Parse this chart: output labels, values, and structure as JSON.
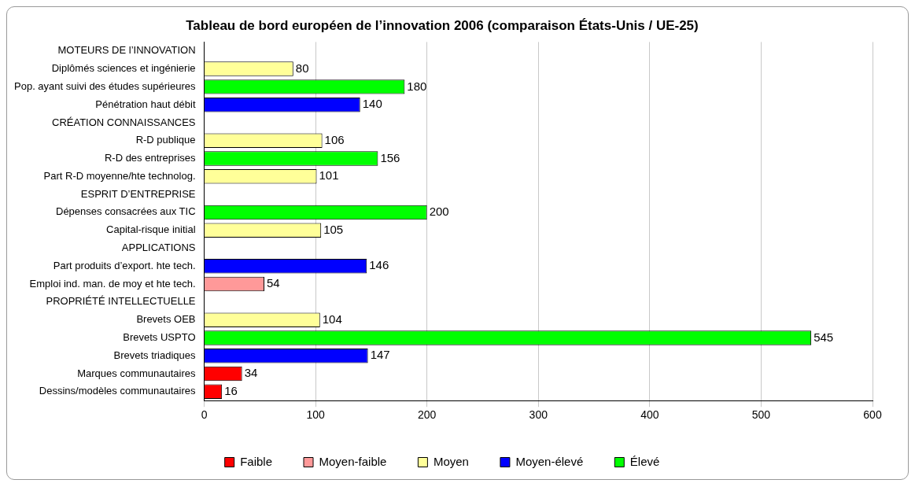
{
  "chart_data": {
    "type": "bar",
    "orientation": "horizontal",
    "title": "Tableau de bord européen de l’innovation 2006 (comparaison États-Unis / UE-25)",
    "categories": [
      "MOTEURS DE l’INNOVATION",
      "Diplômés sciences et ingénierie",
      "Pop. ayant suivi des études supérieures",
      "Pénétration haut débit",
      "CRÉATION CONNAISSANCES",
      "R-D publique",
      "R-D des entreprises",
      "Part R-D moyenne/hte technolog.",
      "ESPRIT D’ENTREPRISE",
      "Dépenses consacrées aux TIC",
      "Capital-risque initial",
      "APPLICATIONS",
      "Part produits d’export. hte tech.",
      "Emploi ind. man. de moy et hte tech.",
      "PROPRIÉTÉ INTELLECTUELLE",
      "Brevets OEB",
      "Brevets USPTO",
      "Brevets triadiques",
      "Marques communautaires",
      "Dessins/modèles communautaires"
    ],
    "series": [
      {
        "name": "Faible",
        "color": "#ff0000",
        "values": [
          null,
          null,
          null,
          null,
          null,
          null,
          null,
          null,
          null,
          null,
          null,
          null,
          null,
          null,
          null,
          null,
          null,
          null,
          34,
          16
        ]
      },
      {
        "name": "Moyen-faible",
        "color": "#ff9999",
        "values": [
          null,
          null,
          null,
          null,
          null,
          null,
          null,
          null,
          null,
          null,
          null,
          null,
          null,
          54,
          null,
          null,
          null,
          null,
          null,
          null
        ]
      },
      {
        "name": "Moyen",
        "color": "#ffff99",
        "values": [
          null,
          80,
          null,
          null,
          null,
          106,
          null,
          101,
          null,
          null,
          105,
          null,
          null,
          null,
          null,
          104,
          null,
          null,
          null,
          null
        ]
      },
      {
        "name": "Moyen-élevé",
        "color": "#0000ff",
        "values": [
          null,
          null,
          null,
          140,
          null,
          null,
          null,
          null,
          null,
          null,
          null,
          null,
          146,
          null,
          null,
          null,
          null,
          147,
          null,
          null
        ]
      },
      {
        "name": "Élevé",
        "color": "#00ff00",
        "values": [
          null,
          null,
          180,
          null,
          null,
          null,
          156,
          null,
          null,
          200,
          null,
          null,
          null,
          null,
          null,
          null,
          545,
          null,
          null,
          null
        ]
      }
    ],
    "xlim": [
      0,
      600
    ],
    "xticks": [
      0,
      100,
      200,
      300,
      400,
      500,
      600
    ],
    "grid": "x",
    "legend": "bottom",
    "data_labels": true
  }
}
